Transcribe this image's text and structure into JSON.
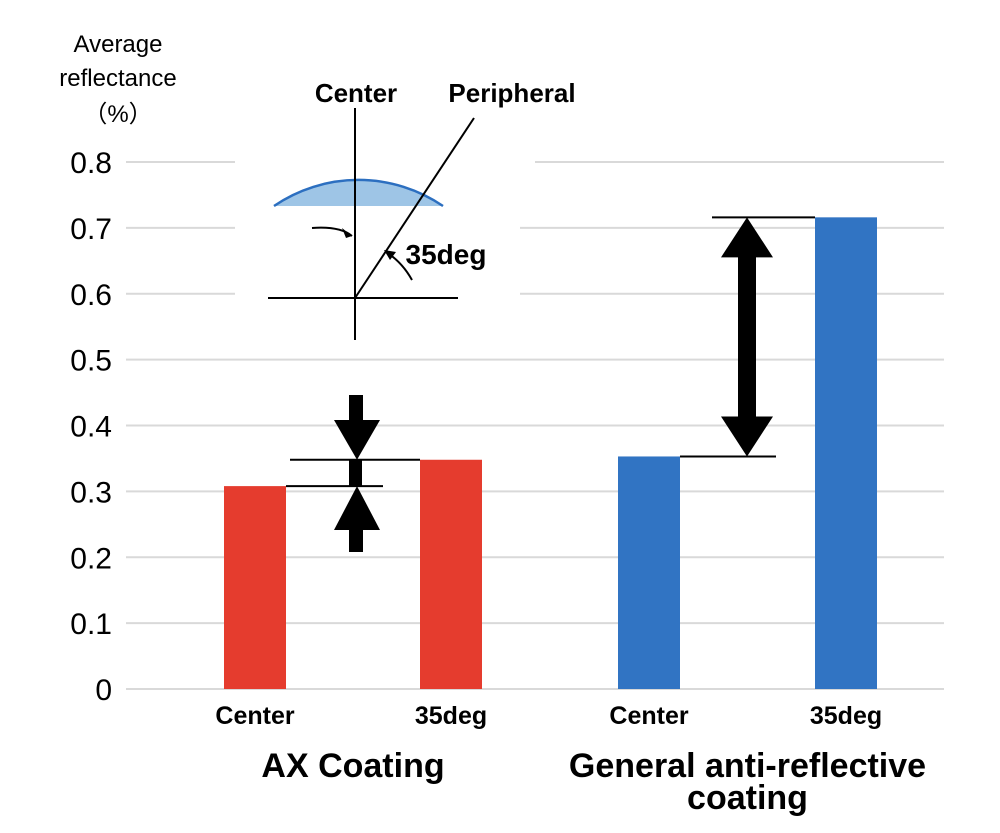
{
  "chart_data": {
    "type": "bar",
    "ylabel_lines": [
      "Average",
      "reflectance",
      "（%）"
    ],
    "ylim": [
      0,
      0.8
    ],
    "yticks": [
      "0",
      "0.1",
      "0.2",
      "0.3",
      "0.4",
      "0.5",
      "0.6",
      "0.7",
      "0.8"
    ],
    "grid": true,
    "groups": [
      {
        "name": "AX Coating",
        "name_lines": [
          "AX Coating"
        ],
        "categories": [
          "Center",
          "35deg"
        ],
        "values": [
          0.308,
          0.348
        ],
        "color": "#e53c2e"
      },
      {
        "name": "General anti-reflective coating",
        "name_lines": [
          "General anti-reflective",
          "coating"
        ],
        "categories": [
          "Center",
          "35deg"
        ],
        "values": [
          0.353,
          0.716
        ],
        "color": "#3174c3"
      }
    ],
    "inset": {
      "center_label": "Center",
      "peripheral_label": "Peripheral",
      "angle_label": "35deg",
      "lens_color": "#9ec5e6"
    }
  }
}
